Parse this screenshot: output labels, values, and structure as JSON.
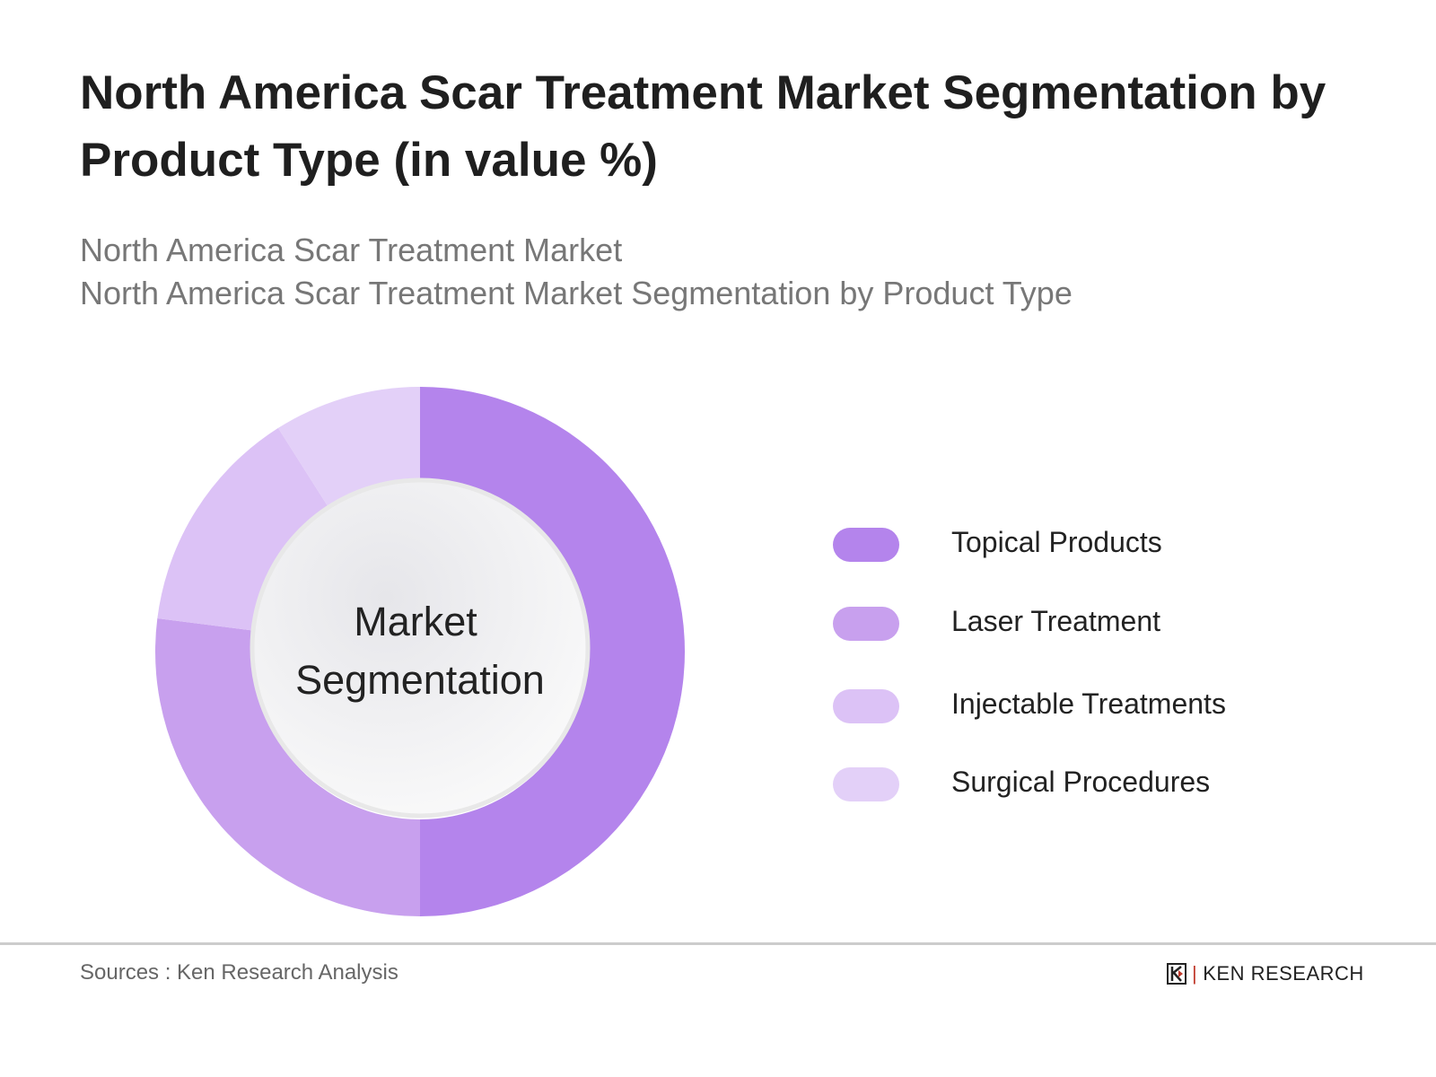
{
  "title": "North America Scar Treatment Market Segmentation by Product Type (in value %)",
  "subtitle_1": "North America Scar Treatment Market",
  "subtitle_2": "North America Scar Treatment Market Segmentation by Product Type",
  "chart_data": {
    "type": "pie",
    "variant": "donut",
    "center_label": [
      "Market",
      "Segmentation"
    ],
    "categories": [
      "Topical Products",
      "Laser Treatment",
      "Injectable Treatments",
      "Surgical Procedures"
    ],
    "values": [
      50,
      27,
      14,
      9
    ],
    "colors": [
      "#b484ec",
      "#c8a0ee",
      "#dcc2f6",
      "#e3d0f8"
    ],
    "legend_position": "right"
  },
  "footer": {
    "source": "Sources : Ken Research Analysis",
    "logo_text": "KEN RESEARCH"
  }
}
